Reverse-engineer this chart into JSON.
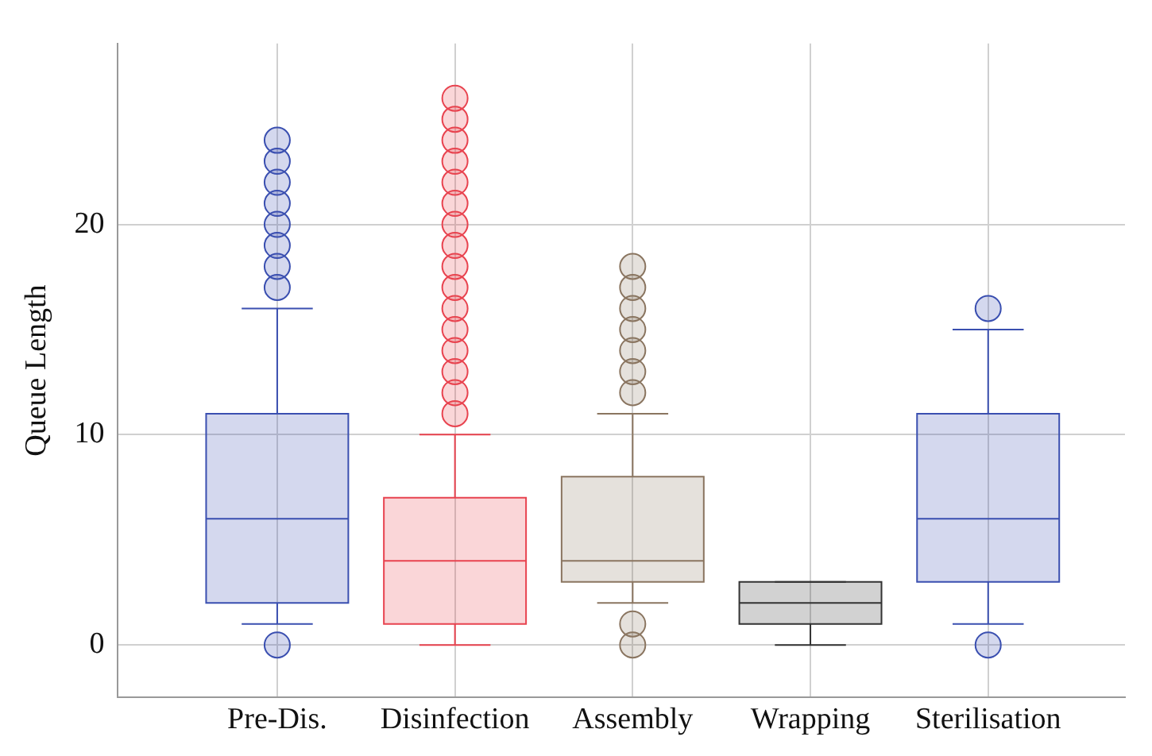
{
  "chart_data": {
    "type": "box",
    "ylabel": "Queue Length",
    "categories": [
      "Pre-Dis.",
      "Disinfection",
      "Assembly",
      "Wrapping",
      "Sterilisation"
    ],
    "colors": [
      "#3a4fb0",
      "#e8434f",
      "#8a7560",
      "#333333",
      "#3a4fb0"
    ],
    "boxes": [
      {
        "low": 1,
        "q1": 2,
        "median": 6,
        "q3": 11,
        "high": 16,
        "outliers": [
          0,
          17,
          18,
          19,
          20,
          21,
          22,
          23,
          24
        ]
      },
      {
        "low": 0,
        "q1": 1,
        "median": 4,
        "q3": 7,
        "high": 10,
        "outliers": [
          11,
          12,
          13,
          14,
          15,
          16,
          17,
          18,
          19,
          20,
          21,
          22,
          23,
          24,
          25,
          26
        ]
      },
      {
        "low": 2,
        "q1": 3,
        "median": 4,
        "q3": 8,
        "high": 11,
        "outliers": [
          0,
          1,
          12,
          13,
          14,
          15,
          16,
          17,
          18
        ]
      },
      {
        "low": 0,
        "q1": 1,
        "median": 2,
        "q3": 3,
        "high": 3
      },
      {
        "low": 1,
        "q1": 3,
        "median": 6,
        "q3": 11,
        "high": 15,
        "outliers": [
          0,
          16
        ]
      }
    ],
    "ylim": [
      -2.5,
      28.6
    ],
    "yticks": [
      0,
      10,
      20
    ],
    "grid": true,
    "marker": "circle"
  }
}
